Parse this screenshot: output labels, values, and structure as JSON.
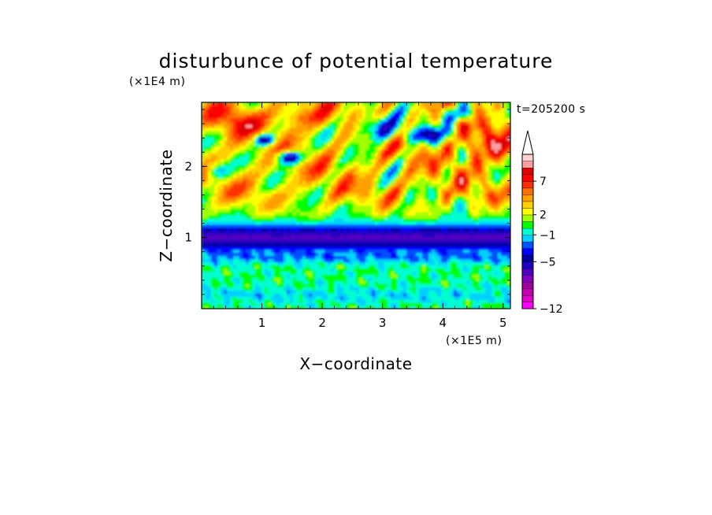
{
  "chart_data": {
    "type": "heatmap",
    "title": "disturbunce of potential temperature",
    "time_label": "t=205200 s",
    "xlabel": "X−coordinate",
    "ylabel": "Z−coordinate",
    "x_unit": "(×1E5 m)",
    "y_unit": "(×1E4 m)",
    "xlim": [
      0,
      5.12
    ],
    "ylim": [
      0,
      2.9
    ],
    "x_ticks": [
      "1",
      "2",
      "3",
      "4",
      "5"
    ],
    "x_tick_values": [
      1,
      2,
      3,
      4,
      5
    ],
    "y_ticks": [
      "1",
      "2"
    ],
    "y_tick_values": [
      1,
      2
    ],
    "colorbar": {
      "levels": [
        -12,
        -11,
        -10,
        -9,
        -8,
        -7,
        -6,
        -5,
        -4,
        -3,
        -2,
        -1,
        0,
        1,
        2,
        3,
        4,
        5,
        6,
        7,
        8,
        9,
        10
      ],
      "colors": [
        "#ff00ff",
        "#e000c8",
        "#c000b0",
        "#a000a0",
        "#8000c0",
        "#5000c0",
        "#2000c0",
        "#0000a0",
        "#0000ff",
        "#0050ff",
        "#00d0ff",
        "#00ffd0",
        "#00ff00",
        "#a0ff00",
        "#ffff00",
        "#ffd000",
        "#ffa000",
        "#ff7000",
        "#ff3000",
        "#ff0000",
        "#e00000",
        "#ffa0a0",
        "#ffd0d0"
      ],
      "labels": [
        "−12",
        "−5",
        "−1",
        "2",
        "7"
      ],
      "label_values": [
        -12,
        -5,
        -1,
        2,
        7
      ],
      "extend": "max"
    },
    "field_description": "Contour-filled field: strong negative layer (−5 to −6) near z=1×10^4 m; weak positive/negative noise below; wavy positive (2–7) structures with embedded negative cells above 1.5×10^4 m"
  }
}
